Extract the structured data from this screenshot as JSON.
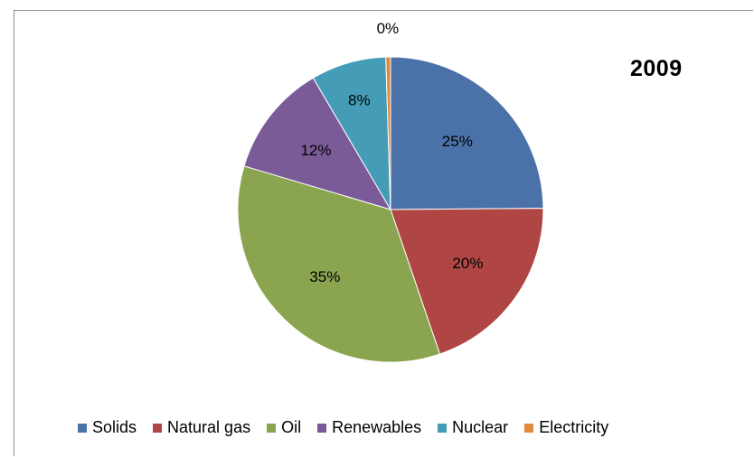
{
  "chart_data": {
    "type": "pie",
    "title": "2009",
    "categories": [
      "Solids",
      "Natural gas",
      "Oil",
      "Renewables",
      "Nuclear",
      "Electricity"
    ],
    "values": [
      25,
      20,
      35,
      12,
      8,
      0.5
    ],
    "data_labels": [
      "25%",
      "20%",
      "35%",
      "12%",
      "8%",
      "0%"
    ],
    "colors": [
      "#4a72a8",
      "#b04644",
      "#8aa44f",
      "#7a5b97",
      "#459cb6",
      "#e08a3f"
    ],
    "legend_position": "bottom"
  }
}
